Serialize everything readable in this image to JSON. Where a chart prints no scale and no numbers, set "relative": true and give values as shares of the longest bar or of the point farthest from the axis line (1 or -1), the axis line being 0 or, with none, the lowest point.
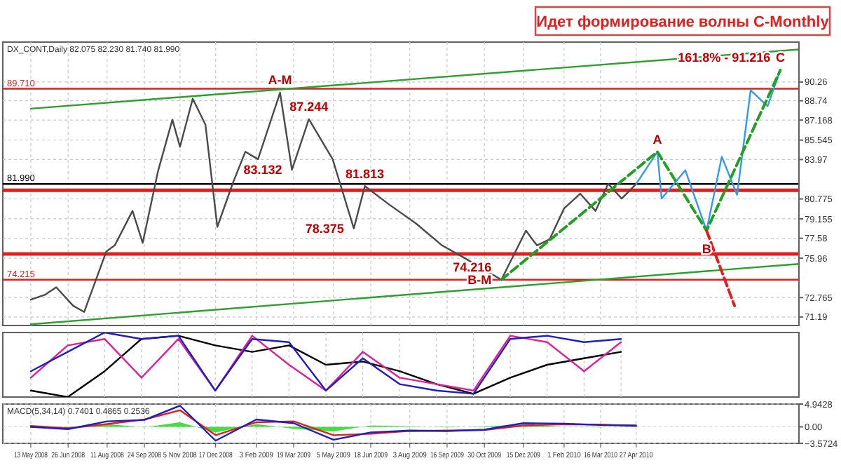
{
  "chart_data": [
    {
      "type": "line",
      "title": "Идет формирование волны C-Monthly",
      "xlim": [
        "2008-04-10",
        "2010-11-05"
      ],
      "ylim": [
        70.5,
        93.5
      ],
      "yticks": [
        90.26,
        88.74,
        87.168,
        85.545,
        83.97,
        80.775,
        79.155,
        77.58,
        75.96,
        72.765,
        71.19
      ],
      "xticks": [
        {
          "value": "2008-05-13",
          "label": null
        },
        {
          "value": "2008-06-26",
          "label": null
        },
        {
          "value": "2008-08-11",
          "label": null
        },
        {
          "value": "2008-09-24",
          "label": null
        },
        {
          "value": "2008-11-05",
          "label": null
        },
        {
          "value": "2008-12-17",
          "label": null
        },
        {
          "value": "2009-02-03",
          "label": null
        },
        {
          "value": "2009-03-19",
          "label": null
        },
        {
          "value": "2009-05-05",
          "label": null
        },
        {
          "value": "2009-06-18",
          "label": null
        },
        {
          "value": "2009-08-03",
          "label": null
        },
        {
          "value": "2009-09-16",
          "label": null
        },
        {
          "value": "2009-10-30",
          "label": null
        },
        {
          "value": "2009-12-15",
          "label": null
        },
        {
          "value": "2010-02-01",
          "label": null
        },
        {
          "value": "2010-03-16",
          "label": null
        },
        {
          "value": "2010-04-27",
          "label": null
        }
      ],
      "tick_labels": "y",
      "grid": true,
      "ref_lines": [
        {
          "axis": "y",
          "value": 89.71,
          "label": "89.710",
          "color": "#e02020"
        },
        {
          "axis": "y",
          "value": 81.47,
          "color": "#e02020"
        },
        {
          "axis": "y",
          "value": 81.99,
          "label": "81.990",
          "color": "#000000"
        },
        {
          "axis": "y",
          "value": 76.3,
          "color": "#e02020"
        },
        {
          "axis": "y",
          "value": 74.215,
          "label": "74.215",
          "color": "#e02020"
        }
      ],
      "series": [
        {
          "color": "#2ca02c",
          "x": [
            "2008-05-13",
            "2010-11-05"
          ],
          "values": [
            88.1,
            92.9
          ]
        },
        {
          "color": "#2ca02c",
          "x": [
            "2008-05-13",
            "2010-11-05"
          ],
          "values": [
            70.6,
            75.5
          ]
        },
        {
          "color": "#4a4a4a",
          "x": [
            "2008-05-13",
            "2008-05-30",
            "2008-06-12",
            "2008-07-02",
            "2008-07-15",
            "2008-08-10",
            "2008-08-20",
            "2008-09-10",
            "2008-09-22",
            "2008-10-10",
            "2008-10-27",
            "2008-11-05",
            "2008-11-20",
            "2008-12-05",
            "2008-12-19",
            "2009-01-06",
            "2009-01-21",
            "2009-02-05",
            "2009-03-03",
            "2009-03-17",
            "2009-04-06",
            "2009-05-04",
            "2009-05-29",
            "2009-06-11",
            "2009-07-10",
            "2009-08-10",
            "2009-09-10",
            "2009-10-06",
            "2009-11-19",
            "2009-12-18",
            "2009-12-31",
            "2010-01-15",
            "2010-02-01",
            "2010-02-20",
            "2010-03-10",
            "2010-03-25",
            "2010-04-10",
            "2010-04-27"
          ],
          "values": [
            72.6,
            73.0,
            73.6,
            72.1,
            71.6,
            76.5,
            77.0,
            79.8,
            77.2,
            83.0,
            87.2,
            85.0,
            88.9,
            86.8,
            78.5,
            82.0,
            84.6,
            84.0,
            89.4,
            83.132,
            87.244,
            84.0,
            78.375,
            81.813,
            80.3,
            78.8,
            77.0,
            76.0,
            74.216,
            78.2,
            77.0,
            77.5,
            80.0,
            81.2,
            79.8,
            82.0,
            80.8,
            81.99
          ]
        },
        {
          "color": "#3399ee",
          "x": [
            "2010-04-27",
            "2010-05-22",
            "2010-05-27",
            "2010-06-24",
            "2010-07-19",
            "2010-08-06",
            "2010-08-24",
            "2010-09-09",
            "2010-09-29",
            "2010-10-14"
          ],
          "values": [
            81.99,
            84.6,
            80.8,
            83.1,
            78.2,
            84.2,
            81.1,
            89.6,
            88.3,
            91.216
          ]
        },
        {
          "color": "#22a022",
          "line_style": "dashed",
          "x": [
            "2009-11-19",
            "2010-05-22",
            "2010-07-19",
            "2010-10-14"
          ],
          "values": [
            74.216,
            84.6,
            78.2,
            91.216
          ]
        },
        {
          "color": "#e02020",
          "line_style": "dashed",
          "x": [
            "2010-07-19",
            "2010-08-21"
          ],
          "values": [
            78.2,
            72.1
          ]
        }
      ],
      "annotations": [
        "DX_CONT,Daily 82.075 82.230 81.740 81.990",
        {
          "text": "A-M",
          "x": "2009-03-03",
          "y": 89.4
        },
        {
          "text": "B-M",
          "x": "2009-11-19",
          "y": 74.216
        },
        {
          "text": "A",
          "x": "2010-05-22",
          "y": 84.6
        },
        {
          "text": "B",
          "x": "2010-07-19",
          "y": 78.2
        },
        {
          "text": "C",
          "x": "2010-10-14",
          "y": 91.216
        },
        {
          "text": "161.8% - 91.216",
          "x": "2010-10-14",
          "y": 91.216
        },
        {
          "text": "83.132",
          "x": "2009-03-17",
          "y": 83.132
        },
        {
          "text": "87.244",
          "x": "2009-04-06",
          "y": 87.244
        },
        {
          "text": "78.375",
          "x": "2009-05-29",
          "y": 78.375
        },
        {
          "text": "81.813",
          "x": "2009-06-11",
          "y": 81.813
        },
        {
          "text": "74.216",
          "x": "2009-11-19",
          "y": 74.216
        }
      ]
    },
    {
      "type": "line",
      "relative": true,
      "grid": "x",
      "categories": [
        null,
        null,
        null,
        null,
        null,
        null,
        null,
        null,
        null,
        null,
        null,
        null,
        null,
        null,
        null,
        null,
        null
      ],
      "series": [
        {
          "color": "#000000",
          "values": [
            0.1,
            0,
            0.4,
            0.9,
            0.95,
            0.8,
            0.7,
            0.8,
            0.5,
            0.55,
            0.4,
            0.2,
            0.05,
            0.3,
            0.5,
            0.6,
            0.7
          ]
        },
        {
          "color": "#e0209a",
          "values": [
            0.3,
            0.8,
            0.9,
            0.3,
            0.9,
            0.1,
            0.95,
            0.5,
            0.1,
            0.7,
            0.3,
            0.2,
            0.1,
            0.95,
            0.85,
            0.4,
            0.85
          ]
        },
        {
          "color": "#1f1fbf",
          "values": [
            0.4,
            0.7,
            1,
            0.9,
            0.95,
            0.1,
            0.9,
            0.85,
            0.1,
            0.6,
            0.2,
            0.1,
            0.05,
            0.9,
            0.95,
            0.85,
            0.9
          ]
        }
      ]
    },
    {
      "type": "line",
      "xlim": [
        "2008-04-10",
        "2010-11-05"
      ],
      "ylim": [
        -3.5724,
        4.9428
      ],
      "yticks": [
        4.9428,
        {
          "value": 0,
          "label": "0.00"
        },
        -3.5724
      ],
      "grid": true,
      "xticks": [
        {
          "value": "2008-05-13",
          "label": "13 May 2008"
        },
        {
          "value": "2008-06-26",
          "label": "26 Jun 2008"
        },
        {
          "value": "2008-08-11",
          "label": "11 Aug 2008"
        },
        {
          "value": "2008-09-24",
          "label": "24 Sep 2008"
        },
        {
          "value": "2008-11-05",
          "label": "5 Nov 2008"
        },
        {
          "value": "2008-12-17",
          "label": "17 Dec 2008"
        },
        {
          "value": "2009-02-03",
          "label": "3 Feb 2009"
        },
        {
          "value": "2009-03-19",
          "label": "19 Mar 2009"
        },
        {
          "value": "2009-05-05",
          "label": "5 May 2009"
        },
        {
          "value": "2009-06-18",
          "label": "18 Jun 2009"
        },
        {
          "value": "2009-08-03",
          "label": "3 Aug 2009"
        },
        {
          "value": "2009-09-16",
          "label": "16 Sep 2009"
        },
        {
          "value": "2009-10-30",
          "label": "30 Oct 2009"
        },
        {
          "value": "2009-12-15",
          "label": "15 Dec 2009"
        },
        {
          "value": "2010-02-01",
          "label": "1 Feb 2010"
        },
        {
          "value": "2010-03-16",
          "label": "16 Mar 2010"
        },
        {
          "value": "2010-04-27",
          "label": "27 Apr 2010"
        }
      ],
      "x": [
        "2008-05-13",
        "2008-06-26",
        "2008-08-11",
        "2008-09-24",
        "2008-11-05",
        "2008-12-17",
        "2009-02-03",
        "2009-03-19",
        "2009-05-05",
        "2009-06-18",
        "2009-08-03",
        "2009-09-16",
        "2009-10-30",
        "2009-12-15",
        "2010-02-01",
        "2010-03-16",
        "2010-04-27"
      ],
      "series": [
        {
          "type": "area",
          "color": "#44dd44",
          "values": [
            -0.2,
            -0.2,
            0.6,
            -0.1,
            1.0,
            -1.2,
            0.6,
            -0.4,
            -1.0,
            0.3,
            0.1,
            -0.1,
            0.1,
            0.5,
            0,
            -0.1,
            0.1
          ]
        },
        {
          "color": "#e02020",
          "values": [
            0.2,
            -0.3,
            0.6,
            1.6,
            3.6,
            -1.8,
            1.0,
            1.2,
            -1.8,
            -1.5,
            -0.9,
            -0.8,
            -0.7,
            0.3,
            0.55,
            0.5,
            0.2
          ]
        },
        {
          "color": "#1f1fbf",
          "values": [
            0,
            -0.5,
            1.2,
            1.5,
            4.6,
            -3.0,
            1.6,
            0.8,
            -2.8,
            -1.2,
            -0.8,
            -0.9,
            -0.6,
            0.8,
            0.7,
            0.4,
            0.3
          ]
        }
      ],
      "annotations": [
        "MACD(5,34,14) 0.7401 0.4865 0.2536"
      ]
    }
  ]
}
